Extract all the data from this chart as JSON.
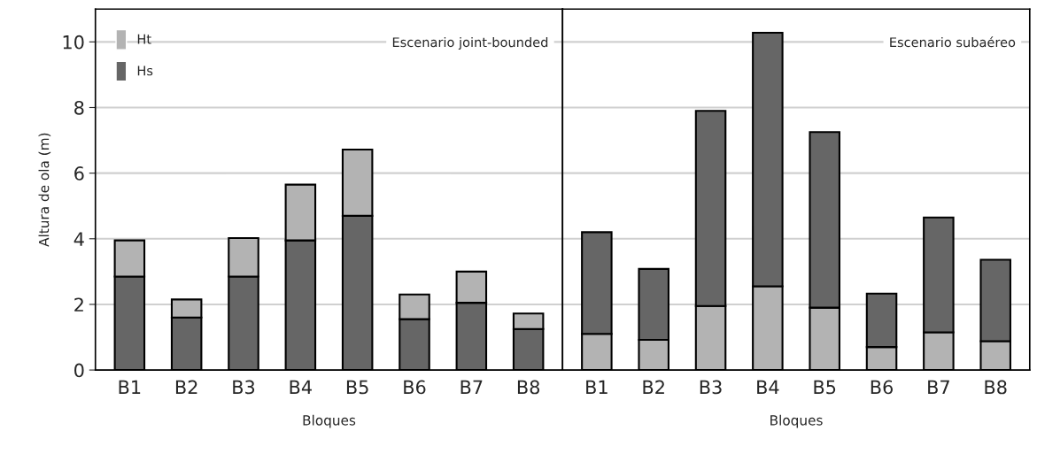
{
  "chart_data": [
    {
      "type": "bar",
      "stacked": true,
      "categories": [
        "B1",
        "B2",
        "B3",
        "B4",
        "B5",
        "B6",
        "B7",
        "B8"
      ],
      "xlabel": "Bloques",
      "ylabel": "Altura de ola (m)",
      "ylim": [
        0,
        11
      ],
      "yticks": [
        0,
        2,
        4,
        6,
        8,
        10
      ],
      "grid": "y",
      "legend": "top left",
      "annotations": [
        "Escenario joint-bounded"
      ],
      "series": [
        {
          "name": "Hs",
          "color": "#666666",
          "values": [
            2.85,
            1.6,
            2.85,
            3.95,
            4.7,
            1.55,
            2.05,
            1.25
          ]
        },
        {
          "name": "Ht",
          "color": "#b3b3b3",
          "values": [
            1.1,
            0.55,
            1.17,
            1.7,
            2.02,
            0.75,
            0.95,
            0.47
          ]
        }
      ]
    },
    {
      "type": "bar",
      "stacked": true,
      "categories": [
        "B1",
        "B2",
        "B3",
        "B4",
        "B5",
        "B6",
        "B7",
        "B8"
      ],
      "xlabel": "Bloques",
      "ylim": [
        0,
        11
      ],
      "yticks": [
        0,
        2,
        4,
        6,
        8,
        10
      ],
      "grid": "y",
      "tick_labels": "x",
      "annotations": [
        "Escenario subaéreo"
      ],
      "series": [
        {
          "color": "#b3b3b3",
          "values": [
            1.1,
            0.92,
            1.95,
            2.55,
            1.9,
            0.7,
            1.15,
            0.88
          ]
        },
        {
          "color": "#666666",
          "values": [
            3.1,
            2.16,
            5.95,
            7.73,
            5.35,
            1.63,
            3.5,
            2.48
          ]
        }
      ]
    }
  ]
}
